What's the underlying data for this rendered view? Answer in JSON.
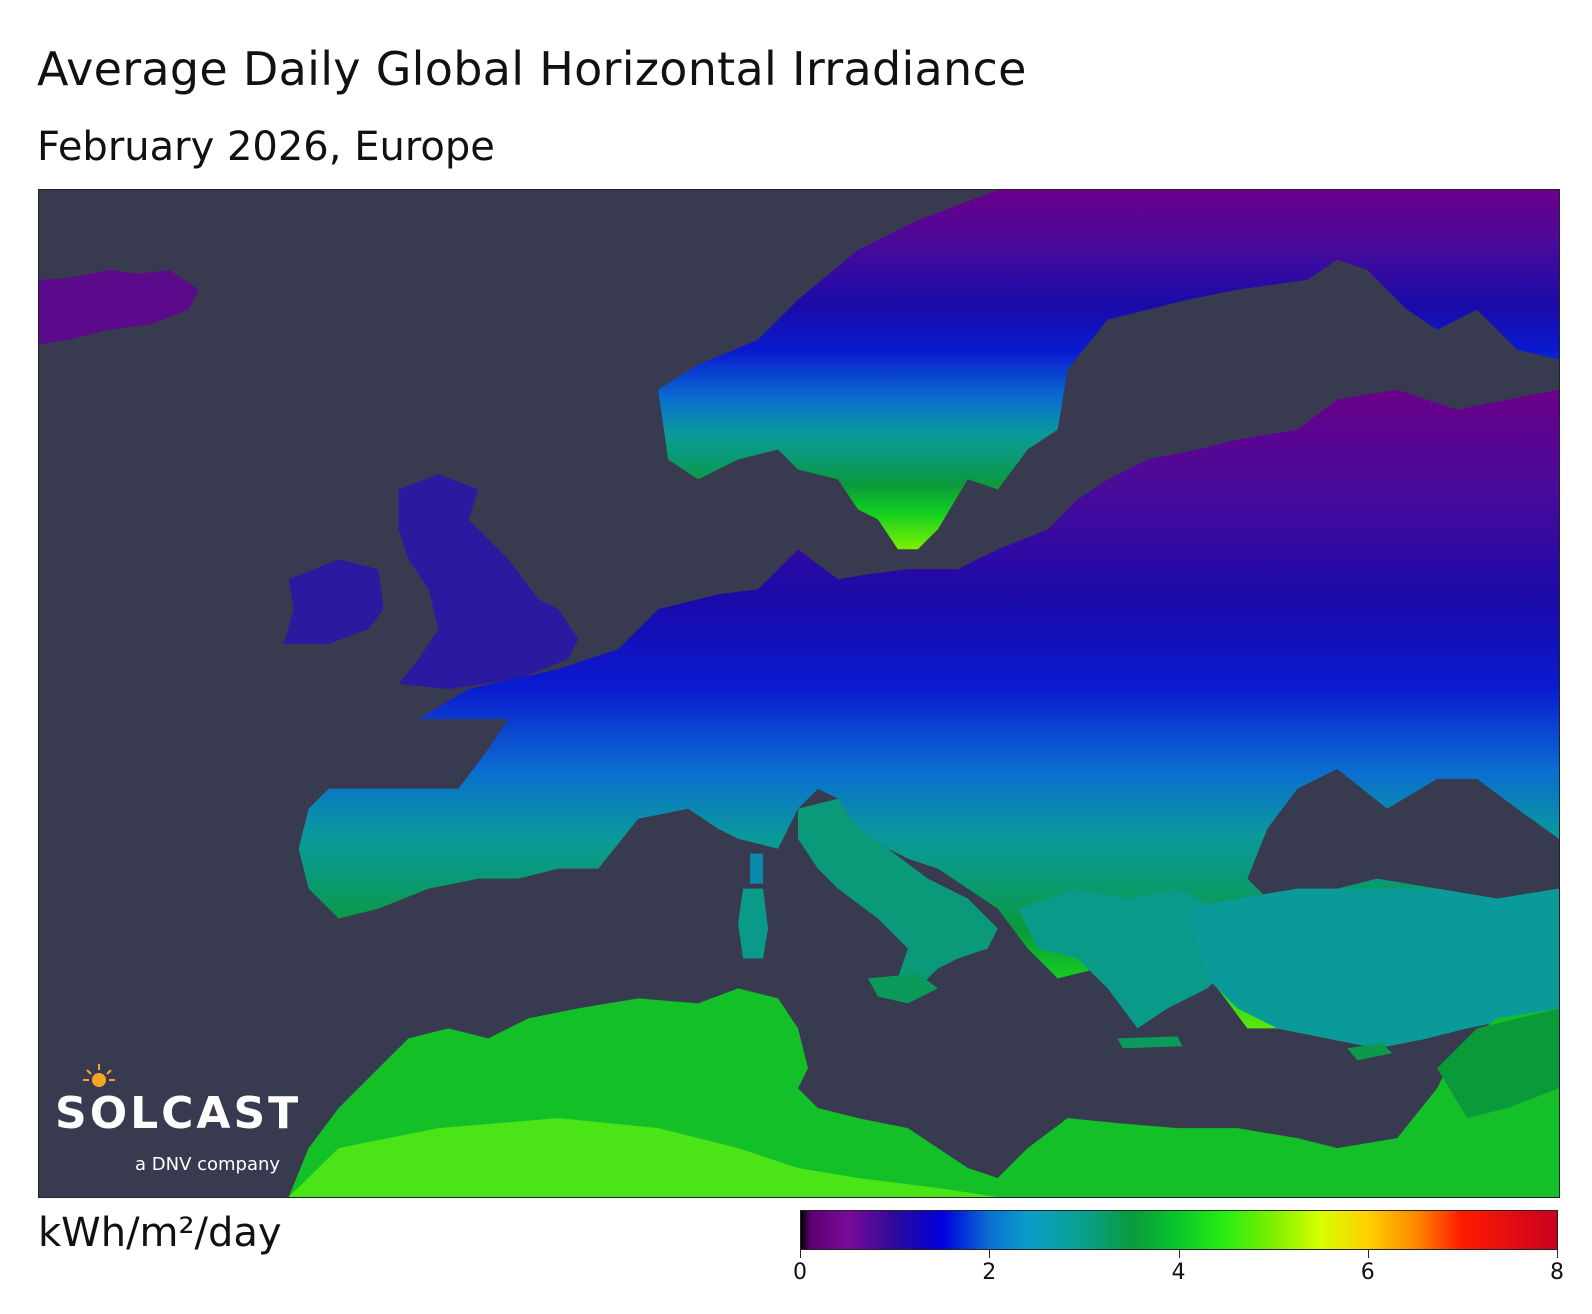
{
  "title": "Average Daily Global Horizontal Irradiance",
  "subtitle": "February 2026, Europe",
  "logo": {
    "wordmark": "SOLCAST",
    "tagline": "a DNV company",
    "icon": "sun-icon"
  },
  "colorbar": {
    "unit": "kWh/m²/day",
    "min": 0,
    "max": 8,
    "ticks": [
      "0",
      "2",
      "4",
      "6",
      "8"
    ],
    "stops": [
      {
        "value": 0,
        "color": "#000000"
      },
      {
        "value": 0.1,
        "color": "#5a0070"
      },
      {
        "value": 0.5,
        "color": "#7a0a9a"
      },
      {
        "value": 1.0,
        "color": "#2a0a9a"
      },
      {
        "value": 1.5,
        "color": "#0000dc"
      },
      {
        "value": 2.0,
        "color": "#0a70d2"
      },
      {
        "value": 2.4,
        "color": "#0a9ec8"
      },
      {
        "value": 3.0,
        "color": "#0aa08c"
      },
      {
        "value": 3.5,
        "color": "#0a9a3c"
      },
      {
        "value": 4.0,
        "color": "#0ac82a"
      },
      {
        "value": 4.5,
        "color": "#2aee10"
      },
      {
        "value": 5.0,
        "color": "#7ef000"
      },
      {
        "value": 5.5,
        "color": "#d7ff00"
      },
      {
        "value": 6.0,
        "color": "#ffd000"
      },
      {
        "value": 6.5,
        "color": "#ff8a00"
      },
      {
        "value": 7.0,
        "color": "#ff1a00"
      },
      {
        "value": 8.0,
        "color": "#c80020"
      }
    ]
  },
  "map": {
    "sea_color": "#383b4f",
    "region": "Europe"
  }
}
